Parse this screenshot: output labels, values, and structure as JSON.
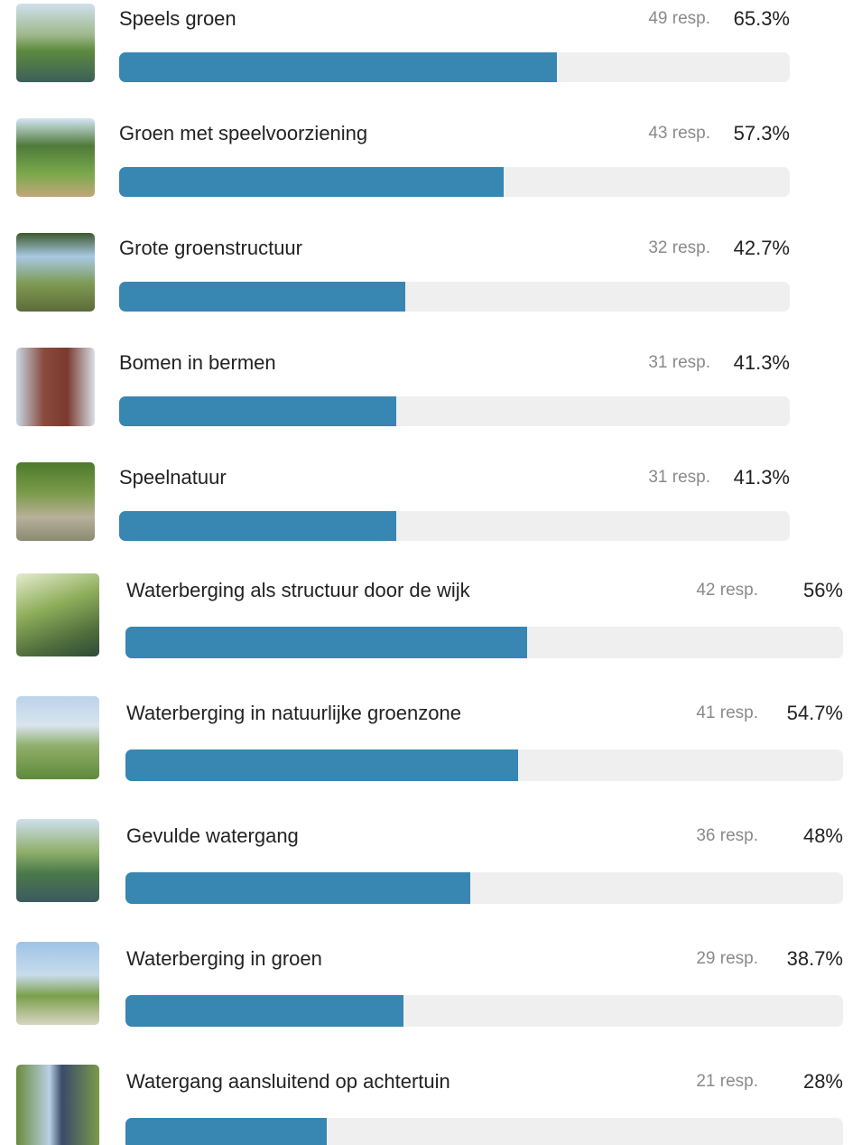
{
  "items": [
    {
      "label": "Speels groen",
      "responses": "49 resp.",
      "percent": {
        "value": 65.3,
        "label": "65.3%"
      }
    },
    {
      "label": "Groen met speelvoorziening",
      "responses": "43 resp.",
      "percent": {
        "value": 57.3,
        "label": "57.3%"
      }
    },
    {
      "label": "Grote groenstructuur",
      "responses": "32 resp.",
      "percent": {
        "value": 42.7,
        "label": "42.7%"
      }
    },
    {
      "label": "Bomen in bermen",
      "responses": "31 resp.",
      "percent": {
        "value": 41.3,
        "label": "41.3%"
      }
    },
    {
      "label": "Speelnatuur",
      "responses": "31 resp.",
      "percent": {
        "value": 41.3,
        "label": "41.3%"
      }
    },
    {
      "label": "Waterberging als structuur door de wijk",
      "responses": "42 resp.",
      "percent": {
        "value": 56,
        "label": "56%"
      }
    },
    {
      "label": "Waterberging in natuurlijke groenzone",
      "responses": "41 resp.",
      "percent": {
        "value": 54.7,
        "label": "54.7%"
      }
    },
    {
      "label": "Gevulde watergang",
      "responses": "36 resp.",
      "percent": {
        "value": 48,
        "label": "48%"
      }
    },
    {
      "label": "Waterberging in groen",
      "responses": "29 resp.",
      "percent": {
        "value": 38.7,
        "label": "38.7%"
      }
    },
    {
      "label": "Watergang aansluitend op achtertuin",
      "responses": "21 resp.",
      "percent": {
        "value": 28,
        "label": "28%"
      }
    }
  ]
}
